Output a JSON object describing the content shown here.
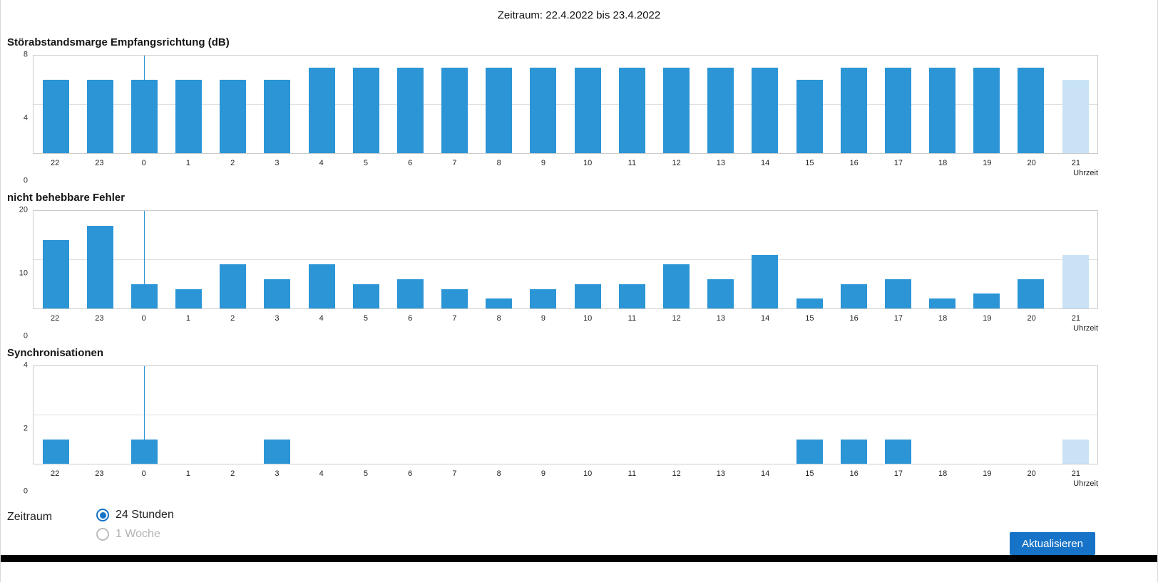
{
  "header": {
    "period_label": "Zeitraum: 22.4.2022 bis 23.4.2022"
  },
  "colors": {
    "bar": "#2b95d6",
    "bar_highlight": "#c9e2f5",
    "accent": "#1673c8",
    "footer": "#000000"
  },
  "chart_data": [
    {
      "type": "bar",
      "title": "Störabstandsmarge Empfangsrichtung (dB)",
      "xlabel": "Uhrzeit",
      "ylim": [
        0,
        8
      ],
      "yticks": [
        0,
        4,
        8
      ],
      "categories": [
        "22",
        "23",
        "0",
        "1",
        "2",
        "3",
        "4",
        "5",
        "6",
        "7",
        "8",
        "9",
        "10",
        "11",
        "12",
        "13",
        "14",
        "15",
        "16",
        "17",
        "18",
        "19",
        "20",
        "21"
      ],
      "values": [
        6,
        6,
        6,
        6,
        6,
        6,
        7,
        7,
        7,
        7,
        7,
        7,
        7,
        7,
        7,
        7,
        7,
        6,
        7,
        7,
        7,
        7,
        7,
        6
      ],
      "highlight_last_bar": true,
      "day_boundary_at_category": "0",
      "grid": true,
      "legend": "none"
    },
    {
      "type": "bar",
      "title": "nicht behebbare Fehler",
      "xlabel": "Uhrzeit",
      "ylim": [
        0,
        20
      ],
      "yticks": [
        0,
        10,
        20
      ],
      "categories": [
        "22",
        "23",
        "0",
        "1",
        "2",
        "3",
        "4",
        "5",
        "6",
        "7",
        "8",
        "9",
        "10",
        "11",
        "12",
        "13",
        "14",
        "15",
        "16",
        "17",
        "18",
        "19",
        "20",
        "21"
      ],
      "values": [
        14,
        17,
        5,
        4,
        9,
        6,
        9,
        5,
        6,
        4,
        2,
        4,
        5,
        5,
        9,
        6,
        11,
        2,
        5,
        6,
        2,
        3,
        6,
        11
      ],
      "highlight_last_bar": true,
      "day_boundary_at_category": "0",
      "grid": true,
      "legend": "none"
    },
    {
      "type": "bar",
      "title": "Synchronisationen",
      "xlabel": "Uhrzeit",
      "ylim": [
        0,
        4
      ],
      "yticks": [
        0,
        2,
        4
      ],
      "categories": [
        "22",
        "23",
        "0",
        "1",
        "2",
        "3",
        "4",
        "5",
        "6",
        "7",
        "8",
        "9",
        "10",
        "11",
        "12",
        "13",
        "14",
        "15",
        "16",
        "17",
        "18",
        "19",
        "20",
        "21"
      ],
      "values": [
        1,
        0,
        1,
        0,
        0,
        1,
        0,
        0,
        0,
        0,
        0,
        0,
        0,
        0,
        0,
        0,
        0,
        1,
        1,
        1,
        0,
        0,
        0,
        1
      ],
      "highlight_last_bar": true,
      "day_boundary_at_category": "0",
      "grid": true,
      "legend": "none"
    }
  ],
  "controls": {
    "zeitraum_label": "Zeitraum",
    "options": [
      {
        "label": "24 Stunden",
        "selected": true,
        "disabled": false
      },
      {
        "label": "1 Woche",
        "selected": false,
        "disabled": true
      }
    ],
    "refresh_label": "Aktualisieren"
  }
}
